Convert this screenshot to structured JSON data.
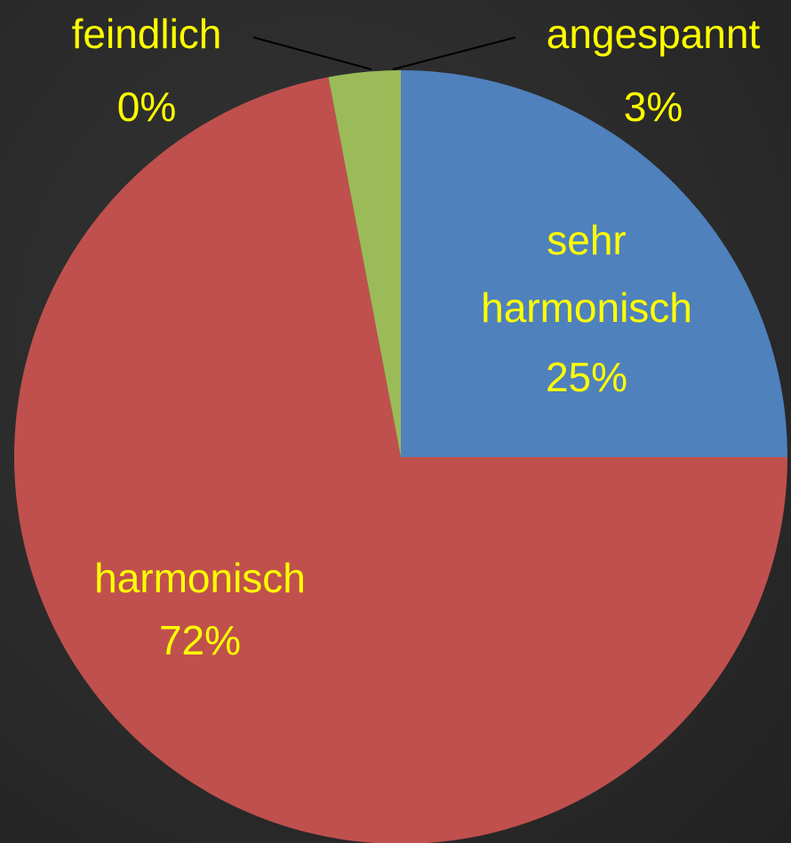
{
  "chart_data": {
    "type": "pie",
    "categories": [
      "sehr harmonisch",
      "harmonisch",
      "angespannt",
      "feindlich"
    ],
    "values": [
      25,
      72,
      3,
      0
    ],
    "value_labels": [
      "25%",
      "72%",
      "3%",
      "0%"
    ],
    "colors": [
      "#4f81bd",
      "#c0504d",
      "#9bbb59",
      "#8064a2"
    ]
  }
}
